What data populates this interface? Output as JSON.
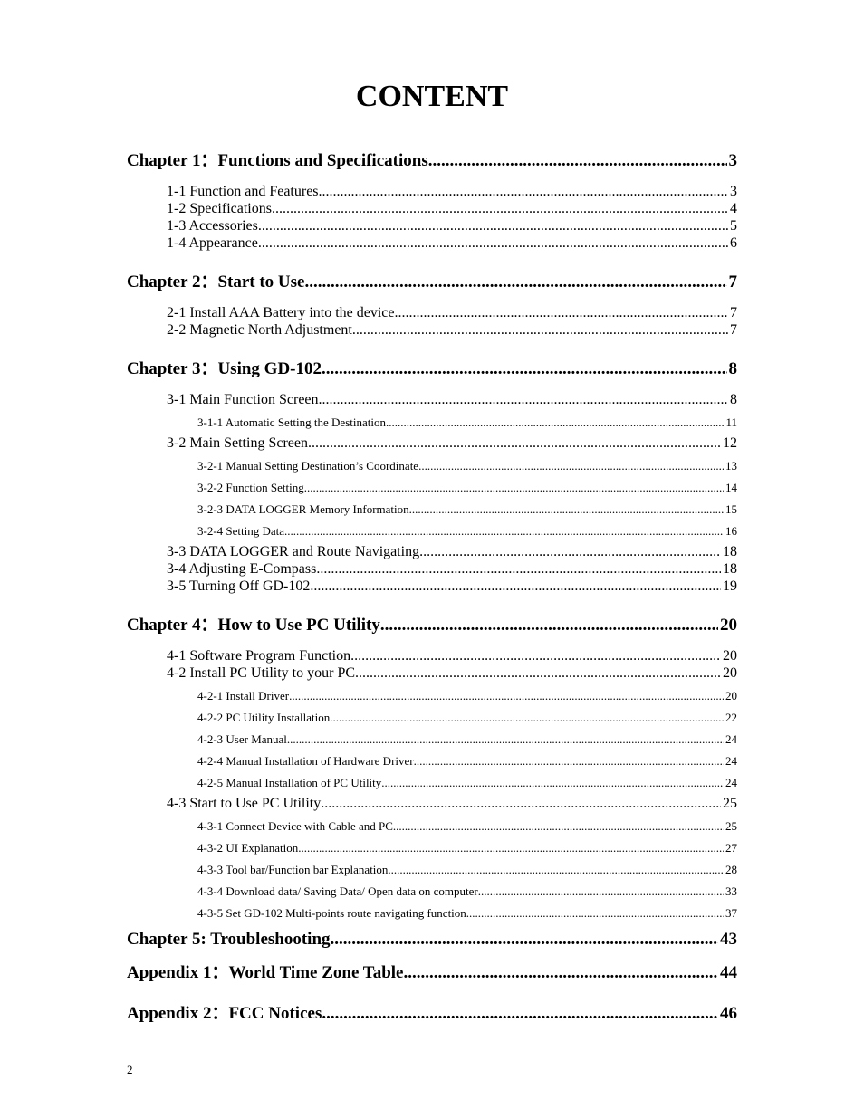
{
  "title": "CONTENT",
  "footer_page": "2",
  "toc": [
    {
      "level": 0,
      "label": "Chapter 1：Functions and Specifications",
      "page": "3"
    },
    {
      "level": 1,
      "label": "1-1 Function and Features",
      "page": "3"
    },
    {
      "level": 1,
      "label": "1-2 Specifications",
      "page": "4"
    },
    {
      "level": 1,
      "label": "1-3 Accessories",
      "page": "5"
    },
    {
      "level": 1,
      "label": "1-4 Appearance",
      "page": "6"
    },
    {
      "level": 0,
      "label": "Chapter 2：Start to Use",
      "page": "7"
    },
    {
      "level": 1,
      "label": "2-1 Install AAA Battery into the device",
      "page": "7"
    },
    {
      "level": 1,
      "label": "2-2 Magnetic North Adjustment",
      "page": "7"
    },
    {
      "level": 0,
      "label": "Chapter 3：Using GD-102",
      "page": "8"
    },
    {
      "level": 1,
      "label": "3-1 Main Function Screen",
      "page": "8"
    },
    {
      "level": 2,
      "label": "3-1-1 Automatic Setting the Destination",
      "page": "11"
    },
    {
      "level": 1,
      "label": "3-2 Main Setting Screen",
      "page": "12"
    },
    {
      "level": 2,
      "label": "3-2-1 Manual Setting Destination’s Coordinate",
      "page": "13"
    },
    {
      "level": 2,
      "label": "3-2-2 Function Setting",
      "page": "14"
    },
    {
      "level": 2,
      "label": "3-2-3 DATA LOGGER Memory Information",
      "page": "15"
    },
    {
      "level": 2,
      "label": "3-2-4 Setting Data",
      "page": "16"
    },
    {
      "level": 1,
      "label": "3-3 DATA LOGGER and Route Navigating",
      "page": "18"
    },
    {
      "level": 1,
      "label": "3-4 Adjusting E-Compass",
      "page": "18"
    },
    {
      "level": 1,
      "label": "3-5 Turning Off GD-102",
      "page": "19"
    },
    {
      "level": 0,
      "label": "Chapter 4：How to Use PC Utility",
      "page": "20"
    },
    {
      "level": 1,
      "label": "4-1 Software Program Function",
      "page": "20"
    },
    {
      "level": 1,
      "label": "4-2 Install PC Utility to your PC",
      "page": "20"
    },
    {
      "level": 2,
      "label": "4-2-1 Install Driver",
      "page": "20"
    },
    {
      "level": 2,
      "label": "4-2-2 PC Utility Installation",
      "page": "22"
    },
    {
      "level": 2,
      "label": "4-2-3 User Manual",
      "page": "24"
    },
    {
      "level": 2,
      "label": "4-2-4 Manual Installation of Hardware Driver",
      "page": "24"
    },
    {
      "level": 2,
      "label": "4-2-5 Manual Installation of PC Utility",
      "page": "24"
    },
    {
      "level": 1,
      "label": "4-3 Start to Use PC Utility",
      "page": "25"
    },
    {
      "level": 2,
      "label": "4-3-1 Connect Device with Cable and PC",
      "page": "25"
    },
    {
      "level": 2,
      "label": "4-3-2 UI Explanation",
      "page": "27"
    },
    {
      "level": 2,
      "label": "4-3-3 Tool bar/Function bar Explanation",
      "page": "28"
    },
    {
      "level": 2,
      "label": "4-3-4 Download data/ Saving Data/ Open data on computer",
      "page": "33"
    },
    {
      "level": 2,
      "label": "4-3-5 Set GD-102 Multi-points route navigating function",
      "page": "37"
    },
    {
      "level": 0,
      "tight": true,
      "label": "Chapter 5: Troubleshooting",
      "page": "43"
    },
    {
      "level": 0,
      "tight": true,
      "label": "Appendix 1：World Time Zone Table",
      "page": "44"
    },
    {
      "level": 0,
      "label": "Appendix 2：FCC Notices",
      "page": "46"
    }
  ]
}
